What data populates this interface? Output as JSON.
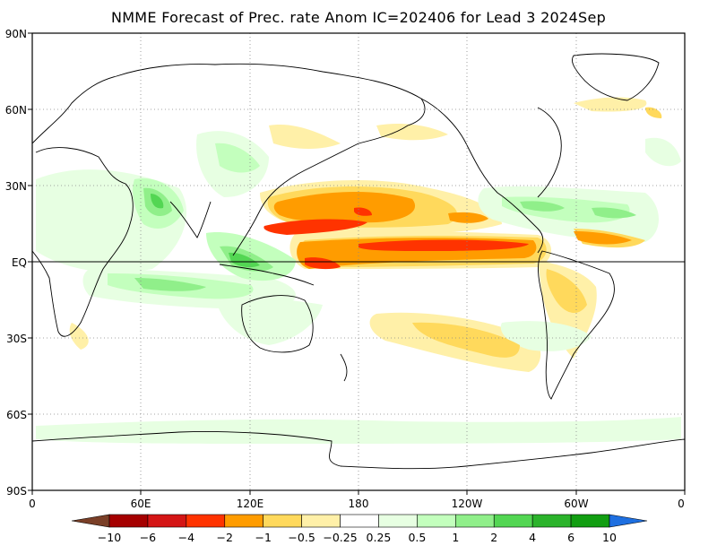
{
  "title": "NMME Forecast of Prec. rate Anom IC=202406 for Lead 3 2024Sep",
  "lat_labels": [
    "90N",
    "60N",
    "30N",
    "EQ",
    "30S",
    "60S",
    "90S"
  ],
  "lon_labels": [
    "0",
    "60E",
    "120E",
    "180",
    "120W",
    "60W",
    "0"
  ],
  "colorbar": {
    "labels": [
      "−10",
      "−6",
      "−4",
      "−2",
      "−1",
      "−0.5",
      "−0.25",
      "0.25",
      "0.5",
      "1",
      "2",
      "4",
      "6",
      "10"
    ],
    "colors": [
      "#7a3f27",
      "#a50000",
      "#d41515",
      "#ff3300",
      "#ff9c00",
      "#ffd95c",
      "#fff0a8",
      "#ffffff",
      "#e7ffe2",
      "#c3ffbd",
      "#90ef8a",
      "#53d653",
      "#2bb32b",
      "#129e12",
      "#1e6fe0"
    ]
  },
  "palette": {
    "dry_strong": "#ff3300",
    "dry_mod": "#ff9c00",
    "dry_weak": "#ffd95c",
    "dry_faint": "#fff0a8",
    "wet_faint": "#e7ffe2",
    "wet_weak": "#c3ffbd",
    "wet_mod": "#90ef8a",
    "wet_strong": "#53d653",
    "grid": "#888888",
    "equator": "#000000"
  }
}
